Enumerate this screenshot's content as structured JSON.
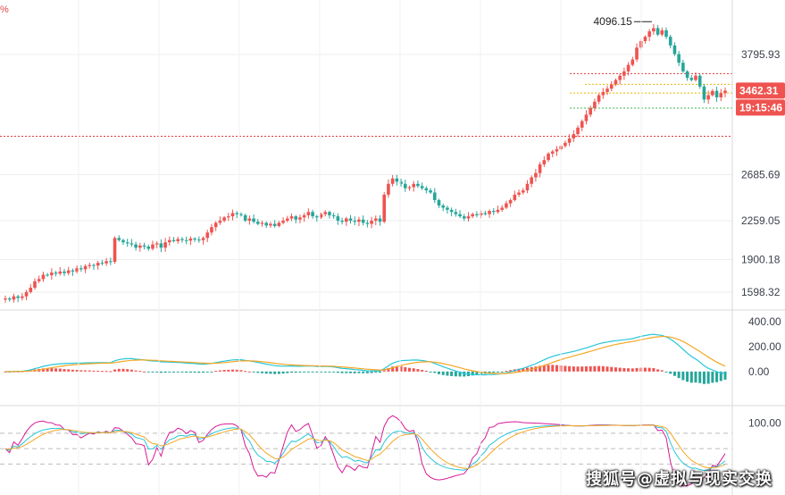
{
  "corner_label": "%",
  "watermark": "搜狐号@虚拟与现实交换",
  "chart_data": [
    {
      "type": "candlestick",
      "title": "",
      "price_ticks": [
        "3795.93",
        "2685.69",
        "2259.05",
        "1900.18",
        "1598.32"
      ],
      "price_tick_values": [
        3795.93,
        2685.69,
        2259.05,
        1900.18,
        1598.32
      ],
      "ylim": [
        1450,
        4300
      ],
      "peak_label": "4096.15",
      "current_price": "3462.31",
      "countdown": "19:15:46",
      "reference_levels": [
        3620,
        3520,
        3440,
        3300,
        3040
      ],
      "colors": {
        "up": "#26a69a",
        "down": "#ef5350",
        "badge": "#ef5350",
        "dotted_red": "#e03b3b",
        "dotted_yellow": "#e6b800",
        "dotted_green": "#3fb950"
      },
      "closes": [
        1540,
        1530,
        1560,
        1545,
        1560,
        1600,
        1640,
        1700,
        1720,
        1760,
        1755,
        1780,
        1770,
        1790,
        1775,
        1800,
        1790,
        1820,
        1810,
        1840,
        1850,
        1845,
        1870,
        1865,
        1885,
        1880,
        2100,
        2080,
        2060,
        2050,
        2040,
        2010,
        2030,
        2020,
        2000,
        2040,
        2050,
        2010,
        2060,
        2080,
        2070,
        2090,
        2080,
        2075,
        2095,
        2085,
        2080,
        2100,
        2150,
        2200,
        2240,
        2260,
        2290,
        2300,
        2330,
        2320,
        2310,
        2260,
        2280,
        2250,
        2230,
        2240,
        2215,
        2230,
        2210,
        2240,
        2260,
        2280,
        2300,
        2270,
        2290,
        2310,
        2340,
        2300,
        2290,
        2320,
        2340,
        2310,
        2300,
        2260,
        2250,
        2280,
        2260,
        2250,
        2270,
        2240,
        2230,
        2260,
        2280,
        2250,
        2500,
        2600,
        2650,
        2620,
        2600,
        2560,
        2570,
        2600,
        2580,
        2560,
        2540,
        2520,
        2450,
        2400,
        2380,
        2360,
        2340,
        2320,
        2300,
        2280,
        2300,
        2320,
        2310,
        2330,
        2320,
        2350,
        2340,
        2360,
        2380,
        2420,
        2450,
        2500,
        2520,
        2540,
        2600,
        2660,
        2700,
        2780,
        2820,
        2880,
        2900,
        2920,
        2950,
        2980,
        3020,
        3060,
        3120,
        3180,
        3240,
        3300,
        3360,
        3420,
        3450,
        3480,
        3520,
        3560,
        3600,
        3640,
        3700,
        3750,
        3860,
        3920,
        3960,
        4010,
        4040,
        3980,
        4020,
        3960,
        3880,
        3800,
        3720,
        3640,
        3580,
        3560,
        3600,
        3500,
        3380,
        3420,
        3460,
        3400,
        3440,
        3462
      ],
      "macd_ticks": [
        "400.00",
        "200.00",
        "0.00"
      ],
      "macd_tick_values": [
        400,
        200,
        0
      ],
      "macd_ylim": [
        -260,
        480
      ],
      "macd_series": [
        {
          "name": "MACD",
          "color": "#26c6da"
        },
        {
          "name": "Signal",
          "color": "#f5a623"
        },
        {
          "name": "Histogram",
          "up_color": "#ef5350",
          "down_color": "#26a69a"
        }
      ],
      "rsi_ticks": [
        "100.00"
      ],
      "rsi_tick_values": [
        100
      ],
      "rsi_ylim": [
        -40,
        130
      ],
      "rsi_levels": [
        80,
        50,
        20
      ],
      "kdj_series": [
        {
          "name": "K",
          "color": "#26c6da"
        },
        {
          "name": "D",
          "color": "#f5a623"
        },
        {
          "name": "J",
          "color": "#d81b98"
        }
      ]
    }
  ]
}
